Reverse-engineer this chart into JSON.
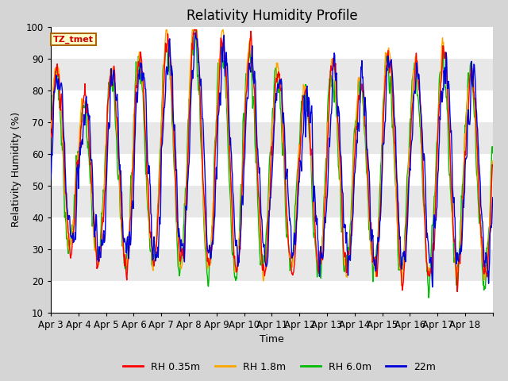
{
  "title": "Relativity Humidity Profile",
  "ylabel": "Relativity Humidity (%)",
  "xlabel": "Time",
  "ylim": [
    10,
    100
  ],
  "yticks": [
    10,
    20,
    30,
    40,
    50,
    60,
    70,
    80,
    90,
    100
  ],
  "xtick_labels": [
    "Apr 3",
    "Apr 4",
    "Apr 5",
    "Apr 6",
    "Apr 7",
    "Apr 8",
    "Apr 9",
    "Apr 10",
    "Apr 11",
    "Apr 12",
    "Apr 13",
    "Apr 14",
    "Apr 15",
    "Apr 16",
    "Apr 17",
    "Apr 18"
  ],
  "legend_labels": [
    "RH 0.35m",
    "RH 1.8m",
    "RH 6.0m",
    "22m"
  ],
  "legend_colors": [
    "#ff0000",
    "#ffa500",
    "#00bb00",
    "#0000dd"
  ],
  "annotation_text": "TZ_tmet",
  "annotation_color": "#cc0000",
  "annotation_bg": "#ffffcc",
  "annotation_border": "#aa6600",
  "plot_bg_color": "#e8e8e8",
  "grid_color": "#ffffff",
  "line_width": 1.0,
  "title_fontsize": 12,
  "label_fontsize": 9,
  "tick_fontsize": 8.5,
  "days": 16,
  "num_points": 960,
  "seed": 7
}
